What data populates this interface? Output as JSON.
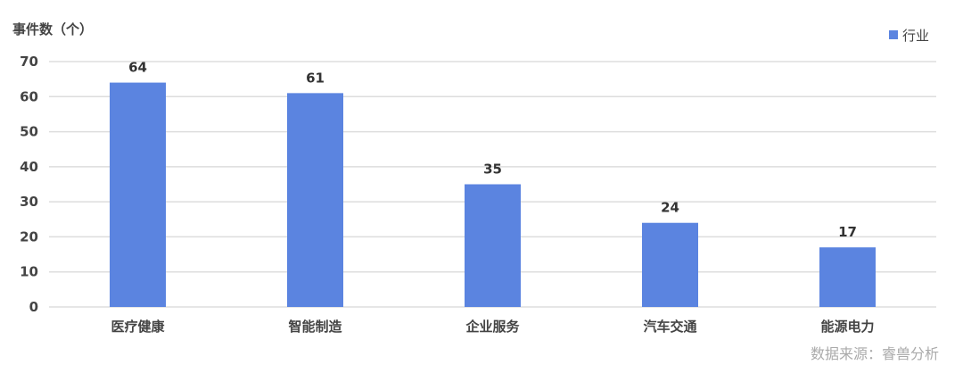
{
  "chart_data": {
    "type": "bar",
    "title": "",
    "ylabel": "事件数（个）",
    "xlabel": "",
    "categories": [
      "医疗健康",
      "智能制造",
      "企业服务",
      "汽车交通",
      "能源电力"
    ],
    "series": [
      {
        "name": "行业",
        "values": [
          64,
          61,
          35,
          24,
          17
        ],
        "color": "#5b84e0"
      }
    ],
    "ylim": [
      0,
      70
    ],
    "yticks": [
      0,
      10,
      20,
      30,
      40,
      50,
      60,
      70
    ],
    "grid": true,
    "legend_position": "top-right",
    "data_labels": true
  },
  "source": "数据来源：睿兽分析"
}
